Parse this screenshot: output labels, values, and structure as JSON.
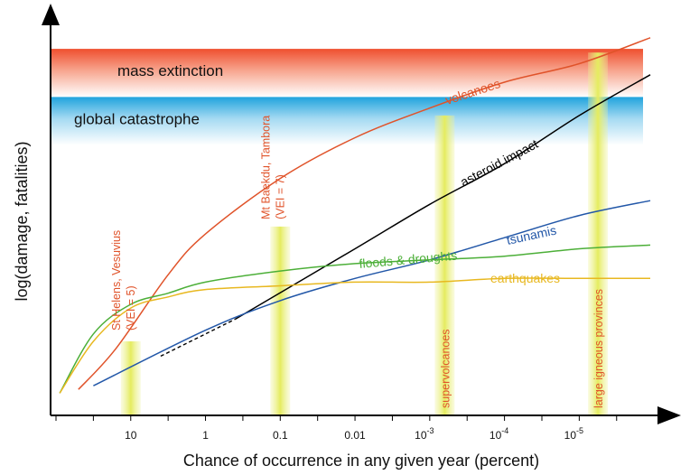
{
  "chart_data": {
    "type": "line",
    "title": "",
    "xlabel": "Chance of occurrence in any given year (percent)",
    "ylabel": "log(damage, fatalities)",
    "x_ticks": [
      {
        "label": "10",
        "exp": 1
      },
      {
        "label": "1",
        "exp": 0
      },
      {
        "label": "0.1",
        "exp": -1
      },
      {
        "label": "0.01",
        "exp": -2
      },
      {
        "label": "10-3",
        "base": "10",
        "sup": "-3",
        "exp": -3
      },
      {
        "label": "10-4",
        "base": "10",
        "sup": "-4",
        "exp": -4
      },
      {
        "label": "10-5",
        "base": "10",
        "sup": "-5",
        "exp": -5
      }
    ],
    "x_scale": "log10 (decreasing to the right)",
    "xlim_exp": [
      2.0,
      -5.95
    ],
    "ylim": [
      0,
      10
    ],
    "grid": false,
    "bands": [
      {
        "label": "mass extinction",
        "color": "#f0573a",
        "y_range": [
          8.6,
          9.9
        ]
      },
      {
        "label": "global catastrophe",
        "color": "#29a6dc",
        "y_range": [
          7.3,
          8.6
        ]
      }
    ],
    "columns": [
      {
        "label_lines": [
          "St Helens, Vesuvius",
          "(VEI = 5)"
        ],
        "exp": 1.0,
        "top": 2.0,
        "text_color": "#e0532a"
      },
      {
        "label_lines": [
          "Mt Baekdu, Tambora",
          "(VEI = 7)"
        ],
        "exp": -1.0,
        "top": 5.1,
        "text_color": "#e0532a"
      },
      {
        "label_lines": [
          "supervolcanoes"
        ],
        "exp": -3.2,
        "top": 8.1,
        "text_color": "#e0532a"
      },
      {
        "label_lines": [
          "large igneous provinces"
        ],
        "exp": -5.25,
        "top": 9.8,
        "text_color": "#e0532a"
      }
    ],
    "series": [
      {
        "name": "volcanoes",
        "color": "#e0532a",
        "x_exp": [
          1.7,
          1.2,
          0.5,
          0,
          -1,
          -2,
          -3,
          -4,
          -5,
          -5.95
        ],
        "y": [
          0.7,
          1.8,
          3.8,
          4.9,
          6.4,
          7.5,
          8.3,
          9.0,
          9.5,
          10.2
        ]
      },
      {
        "name": "asteroid impact",
        "color": "#000000",
        "x_exp": [
          0.6,
          -0.4,
          -2,
          -3,
          -4,
          -5,
          -5.95
        ],
        "y": [
          1.6,
          2.6,
          4.5,
          5.7,
          6.8,
          8.1,
          9.2
        ],
        "dashed_until_exp": -0.4
      },
      {
        "name": "tsunamis",
        "color": "#2257a8",
        "x_exp": [
          1.5,
          0,
          -1,
          -2,
          -3,
          -4,
          -5,
          -5.95
        ],
        "y": [
          0.8,
          2.3,
          3.1,
          3.7,
          4.2,
          4.8,
          5.4,
          5.8
        ]
      },
      {
        "name": "floods & droughts",
        "color": "#4caf38",
        "x_exp": [
          1.95,
          1.5,
          1,
          0.5,
          0,
          -1,
          -2,
          -3,
          -4,
          -5,
          -5.95
        ],
        "y": [
          0.6,
          2.2,
          3.0,
          3.3,
          3.6,
          3.9,
          4.1,
          4.2,
          4.3,
          4.5,
          4.6
        ]
      },
      {
        "name": "earthquakes",
        "color": "#e8b820",
        "x_exp": [
          1.95,
          1.5,
          1,
          0.5,
          0,
          -1,
          -2,
          -3,
          -4,
          -5,
          -5.95
        ],
        "y": [
          0.6,
          2.0,
          2.9,
          3.2,
          3.4,
          3.5,
          3.6,
          3.6,
          3.7,
          3.7,
          3.7
        ]
      }
    ]
  }
}
